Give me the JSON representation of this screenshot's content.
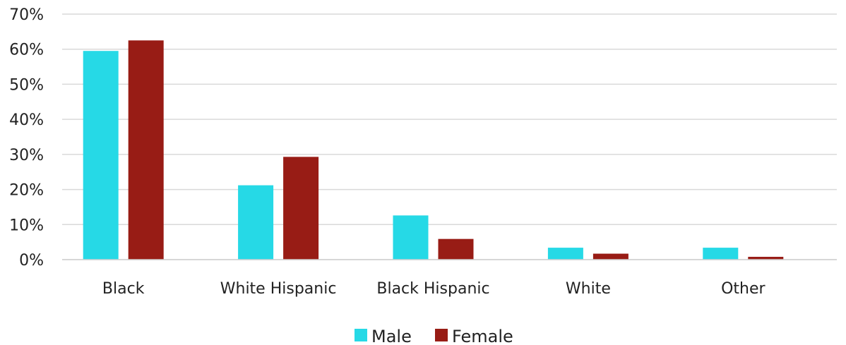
{
  "chart_data": {
    "type": "bar",
    "categories": [
      "Black",
      "White Hispanic",
      "Black Hispanic",
      "White",
      "Other"
    ],
    "series": [
      {
        "name": "Male",
        "color": "#26d9e6",
        "values": [
          59.5,
          21.2,
          12.6,
          3.4,
          3.4
        ]
      },
      {
        "name": "Female",
        "color": "#981c15",
        "values": [
          62.5,
          29.3,
          5.9,
          1.7,
          0.8
        ]
      }
    ],
    "y_ticks": [
      "0%",
      "10%",
      "20%",
      "30%",
      "40%",
      "50%",
      "60%",
      "70%"
    ],
    "ylim": [
      0,
      70
    ],
    "title": "",
    "xlabel": "",
    "ylabel": "",
    "grid": true,
    "legend_position": "bottom-center"
  }
}
